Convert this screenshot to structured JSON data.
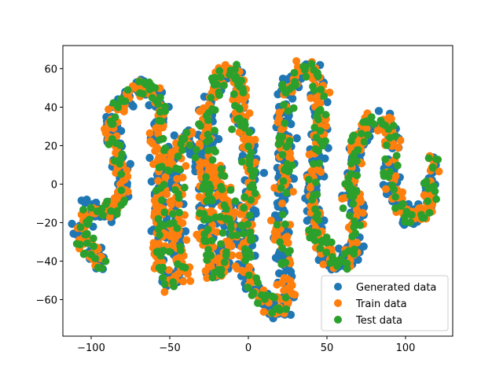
{
  "chart_data": {
    "type": "scatter",
    "title": "",
    "xlabel": "",
    "ylabel": "",
    "xlim": [
      -118,
      130
    ],
    "ylim": [
      -79,
      72
    ],
    "xticks": [
      -100,
      -50,
      0,
      50,
      100
    ],
    "yticks": [
      -60,
      -40,
      -20,
      0,
      20,
      40,
      60
    ],
    "xtick_labels": [
      "−100",
      "−50",
      "0",
      "50",
      "100"
    ],
    "ytick_labels": [
      "−60",
      "−40",
      "−20",
      "0",
      "20",
      "40",
      "60"
    ],
    "grid": false,
    "legend_position": "lower-right",
    "curve_path": [
      [
        -91,
        -41
      ],
      [
        -100,
        -37
      ],
      [
        -107,
        -27
      ],
      [
        -104,
        -15
      ],
      [
        -96,
        -11
      ],
      [
        -90,
        -15
      ],
      [
        -84,
        -13
      ],
      [
        -80,
        -5
      ],
      [
        -80,
        8
      ],
      [
        -84,
        18
      ],
      [
        -88,
        25
      ],
      [
        -86,
        35
      ],
      [
        -80,
        44
      ],
      [
        -72,
        49
      ],
      [
        -62,
        50
      ],
      [
        -56,
        45
      ],
      [
        -56,
        35
      ],
      [
        -58,
        25
      ],
      [
        -56,
        15
      ],
      [
        -54,
        5
      ],
      [
        -56,
        -10
      ],
      [
        -56,
        -25
      ],
      [
        -58,
        -38
      ],
      [
        -54,
        -48
      ],
      [
        -46,
        -52
      ],
      [
        -40,
        -45
      ],
      [
        -45,
        -35
      ],
      [
        -46,
        -22
      ],
      [
        -44,
        -10
      ],
      [
        -46,
        2
      ],
      [
        -46,
        15
      ],
      [
        -40,
        25
      ],
      [
        -34,
        22
      ],
      [
        -30,
        10
      ],
      [
        -26,
        0
      ],
      [
        -26,
        -15
      ],
      [
        -26,
        -30
      ],
      [
        -24,
        -42
      ],
      [
        -20,
        -48
      ],
      [
        -14,
        -35
      ],
      [
        -12,
        -20
      ],
      [
        -16,
        -5
      ],
      [
        -22,
        10
      ],
      [
        -26,
        25
      ],
      [
        -26,
        40
      ],
      [
        -20,
        55
      ],
      [
        -12,
        60
      ],
      [
        -6,
        55
      ],
      [
        -4,
        45
      ],
      [
        -6,
        35
      ],
      [
        -2,
        25
      ],
      [
        2,
        15
      ],
      [
        2,
        0
      ],
      [
        0,
        -15
      ],
      [
        -2,
        -30
      ],
      [
        -2,
        -45
      ],
      [
        4,
        -55
      ],
      [
        12,
        -62
      ],
      [
        20,
        -68
      ],
      [
        24,
        -60
      ],
      [
        24,
        -45
      ],
      [
        22,
        -30
      ],
      [
        20,
        -15
      ],
      [
        22,
        0
      ],
      [
        24,
        15
      ],
      [
        22,
        30
      ],
      [
        22,
        45
      ],
      [
        28,
        55
      ],
      [
        38,
        62
      ],
      [
        44,
        57
      ],
      [
        44,
        45
      ],
      [
        46,
        30
      ],
      [
        44,
        15
      ],
      [
        42,
        0
      ],
      [
        42,
        -15
      ],
      [
        44,
        -30
      ],
      [
        52,
        -40
      ],
      [
        60,
        -42
      ],
      [
        66,
        -35
      ],
      [
        68,
        -22
      ],
      [
        66,
        -8
      ],
      [
        66,
        6
      ],
      [
        68,
        20
      ],
      [
        74,
        30
      ],
      [
        82,
        32
      ],
      [
        90,
        30
      ],
      [
        92,
        20
      ],
      [
        90,
        10
      ],
      [
        92,
        0
      ],
      [
        96,
        -12
      ],
      [
        104,
        -20
      ],
      [
        112,
        -15
      ],
      [
        116,
        -5
      ],
      [
        118,
        5
      ],
      [
        118,
        15
      ]
    ],
    "series": [
      {
        "name": "Generated data",
        "color": "#1f77b4"
      },
      {
        "name": "Train data",
        "color": "#ff7f0e"
      },
      {
        "name": "Test data",
        "color": "#2ca02c"
      }
    ]
  }
}
